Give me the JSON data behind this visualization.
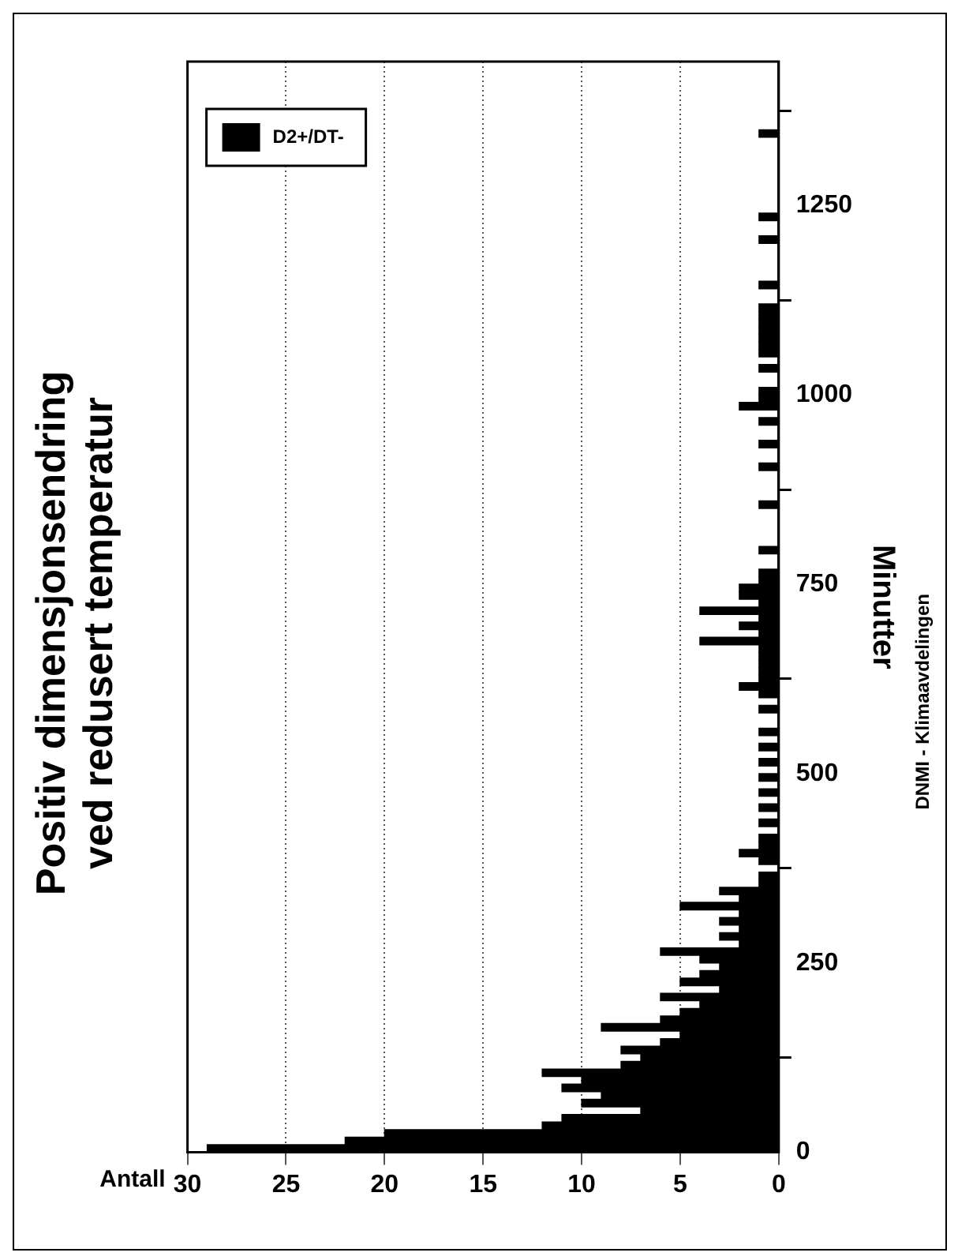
{
  "chart_data": {
    "type": "histogram",
    "orientation": "horizontal",
    "title": "Positiv dimensjonsendring ved redusert temperatur",
    "xlabel": "Antall",
    "ylabel": "Minutter",
    "annotations": [
      "DNMI - Klimaavdelingen"
    ],
    "bins": [
      0,
      10,
      20,
      30,
      40,
      50,
      60,
      70,
      80,
      90,
      100,
      110,
      120,
      130,
      140,
      150,
      160,
      170,
      180,
      190,
      200,
      210,
      220,
      230,
      240,
      250,
      260,
      270,
      280,
      290,
      300,
      310,
      320,
      330,
      340,
      350,
      360,
      370,
      380,
      390,
      400,
      410,
      420,
      430,
      440,
      450,
      460,
      470,
      480,
      490,
      500,
      510,
      520,
      530,
      540,
      550,
      560,
      570,
      580,
      590,
      600,
      610,
      620,
      630,
      640,
      650,
      660,
      670,
      680,
      690,
      700,
      710,
      720,
      730,
      740,
      750,
      760,
      770,
      780,
      790,
      800,
      810,
      820,
      830,
      840,
      850,
      860,
      870,
      880,
      890,
      900,
      910,
      920,
      930,
      940,
      950,
      960,
      970,
      980,
      990,
      1000,
      1010,
      1020,
      1030,
      1040,
      1050,
      1060,
      1070,
      1080,
      1090,
      1100,
      1110,
      1120,
      1130,
      1140,
      1150,
      1160,
      1170,
      1180,
      1190,
      1200,
      1210,
      1220,
      1230,
      1240,
      1250,
      1260,
      1270,
      1280,
      1290,
      1300,
      1310,
      1320,
      1330,
      1340,
      1350
    ],
    "series": [
      {
        "name": "D2+/DT-",
        "color": "#000000",
        "values": [
          29,
          22,
          20,
          12,
          11,
          7,
          10,
          9,
          11,
          10,
          12,
          8,
          7,
          8,
          6,
          5,
          9,
          6,
          5,
          4,
          6,
          3,
          5,
          4,
          3,
          4,
          6,
          2,
          3,
          2,
          3,
          2,
          5,
          2,
          3,
          1,
          1,
          0,
          1,
          2,
          1,
          1,
          0,
          1,
          0,
          1,
          0,
          1,
          0,
          1,
          0,
          1,
          0,
          1,
          0,
          1,
          0,
          0,
          1,
          0,
          1,
          2,
          1,
          1,
          1,
          1,
          1,
          4,
          1,
          2,
          1,
          4,
          1,
          2,
          2,
          1,
          1,
          0,
          0,
          1,
          0,
          0,
          0,
          0,
          0,
          1,
          0,
          0,
          0,
          0,
          1,
          0,
          0,
          1,
          0,
          0,
          1,
          0,
          2,
          1,
          1,
          0,
          0,
          1,
          0,
          1,
          1,
          1,
          1,
          1,
          1,
          1,
          0,
          0,
          1,
          0,
          0,
          0,
          0,
          0,
          1,
          0,
          0,
          1,
          0,
          0,
          0,
          0,
          0,
          0,
          0,
          0,
          0,
          0,
          1
        ]
      }
    ],
    "xlim": [
      30,
      0
    ],
    "xticks": [
      30,
      25,
      20,
      15,
      10,
      5,
      0
    ],
    "ylim": [
      0,
      1440
    ],
    "yticks": [
      0,
      250,
      500,
      750,
      1000,
      1250
    ],
    "grid": "x",
    "legend": "top left"
  }
}
